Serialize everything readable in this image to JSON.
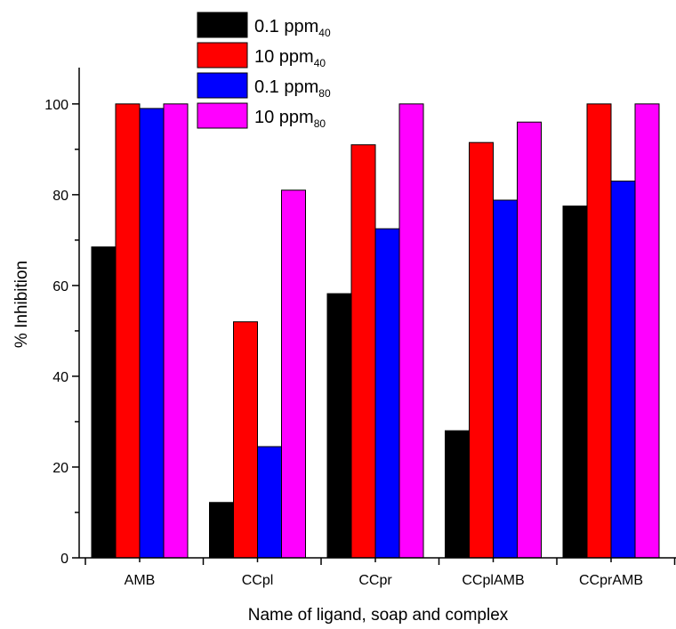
{
  "chart_data": {
    "type": "bar",
    "categories": [
      "AMB",
      "CCpl",
      "CCpr",
      "CCplAMB",
      "CCprAMB"
    ],
    "series": [
      {
        "name": "0.1 ppm",
        "subscript": "40",
        "color": "#000000",
        "values": [
          68.5,
          12.2,
          58.2,
          28.0,
          77.5
        ]
      },
      {
        "name": "10 ppm",
        "subscript": "40",
        "color": "#ff0000",
        "values": [
          100,
          52.0,
          91.0,
          91.5,
          100
        ]
      },
      {
        "name": "0.1 ppm",
        "subscript": "80",
        "color": "#0000ff",
        "values": [
          99.0,
          24.5,
          72.5,
          78.8,
          83.0
        ]
      },
      {
        "name": "10 ppm",
        "subscript": "80",
        "color": "#ff00ff",
        "values": [
          100,
          81.0,
          100,
          96.0,
          100
        ]
      }
    ],
    "xlabel": "Name of ligand, soap and complex",
    "ylabel": "% Inhibition",
    "ylim": [
      0,
      108
    ],
    "yticks": [
      "0",
      "20",
      "40",
      "60",
      "80",
      "100"
    ],
    "yticks_values": [
      0,
      20,
      40,
      60,
      80,
      100
    ],
    "grid": false,
    "legend_position": "top-left"
  }
}
